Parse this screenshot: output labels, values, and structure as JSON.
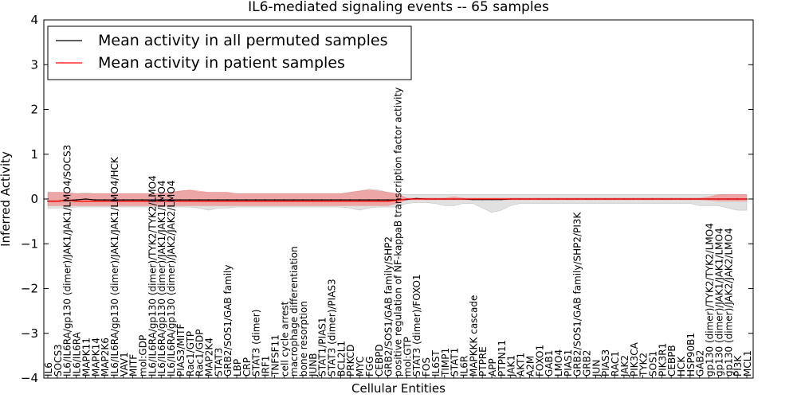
{
  "chart_data": {
    "type": "line",
    "title": "IL6-mediated signaling events -- 65 samples",
    "xlabel": "Cellular Entities",
    "ylabel": "Inferred Activity",
    "ylim": [
      -4,
      4
    ],
    "yticks": [
      -4,
      -3,
      -2,
      -1,
      0,
      1,
      2,
      3,
      4
    ],
    "grid": false,
    "legend_position": "top-left",
    "categories": [
      "IL6",
      "SOCS3",
      "IL6/IL6RA/gp130 (dimer)/JAK1/JAK1/LMO4/SOCS3",
      "IL6/IL6RA",
      "MAPK11",
      "MAPK14",
      "MAP2K6",
      "IL6/IL6RA/gp130 (dimer)/JAK1/JAK1/LMO4/HCK",
      "VAV1",
      "MITF",
      "mol:GDP",
      "IL6/IL6RA/gp130 (dimer)/TYK2/TYK2/LMO4",
      "IL6/IL6RA/gp130 (dimer)/JAK1/JAK1/LMO4",
      "IL6/IL6RA/gp130 (dimer)/JAK2/JAK2/LMO4",
      "PIAS3/MITF",
      "Rac1/GTP",
      "Rac1/GDP",
      "MAP2K4",
      "STAT3",
      "GRB2/SOS1/GAB family",
      "LBP",
      "CRP",
      "STAT3 (dimer)",
      "IRF1",
      "TNFSF11",
      "cell cycle arrest",
      "macrophage differentiation",
      "bone resorption",
      "JUNB",
      "STAT1/PIAS1",
      "STAT3 (dimer)/PIAS3",
      "BCL2L1",
      "PRKCD",
      "MYC",
      "FGG",
      "CEBPD",
      "GRB2/SOS1/GAB family/SHP2",
      "positive regulation of NF-kappaB transcription factor activity",
      "mol:GTP",
      "STAT3 (dimer)/FOXO1",
      "FOS",
      "IL6ST",
      "TIMP1",
      "STAT1",
      "IL6R",
      "MAPKKK cascade",
      "PTPRE",
      "APP",
      "PTPN11",
      "JAK1",
      "AKT1",
      "A2M",
      "FOXO1",
      "GAB1",
      "LMO4",
      "PIAS1",
      "GRB2/SOS1/GAB family/SHP2/PI3K",
      "GRB2",
      "JUN",
      "PIAS3",
      "RAC1",
      "JAK2",
      "PIK3CA",
      "TYK2",
      "SOS1",
      "PIK3R1",
      "CEBPB",
      "HCK",
      "HSP90B1",
      "GAB2",
      "gp130 (dimer)/TYK2/TYK2/LMO4",
      "gp130 (dimer)/JAK1/JAK1/LMO4",
      "gp130 (dimer)/JAK2/JAK2/LMO4",
      "PI3K",
      "MCL1"
    ],
    "series": [
      {
        "name": "Mean activity in all permuted samples",
        "color": "#000000",
        "values": [
          -0.05,
          -0.05,
          -0.03,
          -0.02,
          0.0,
          -0.02,
          -0.02,
          -0.02,
          -0.02,
          -0.02,
          -0.02,
          -0.02,
          -0.02,
          -0.02,
          -0.02,
          -0.02,
          -0.02,
          -0.02,
          -0.02,
          -0.02,
          -0.02,
          -0.02,
          -0.02,
          -0.02,
          -0.02,
          -0.02,
          -0.02,
          -0.02,
          -0.02,
          -0.02,
          -0.02,
          -0.02,
          -0.02,
          -0.02,
          -0.02,
          -0.02,
          -0.02,
          -0.02,
          -0.01,
          0.01,
          0.0,
          0.0,
          0.0,
          0.0,
          0.0,
          -0.01,
          -0.01,
          -0.01,
          -0.01,
          0.0,
          0.0,
          0.0,
          0.0,
          0.0,
          0.0,
          0.0,
          0.0,
          0.0,
          0.0,
          0.0,
          0.0,
          0.0,
          0.0,
          0.0,
          0.0,
          0.0,
          0.0,
          0.0,
          0.0,
          0.0,
          0.0,
          0.0,
          0.0,
          0.0,
          0.0
        ],
        "band_low": [
          -0.2,
          -0.2,
          -0.2,
          -0.18,
          -0.18,
          -0.18,
          -0.18,
          -0.18,
          -0.18,
          -0.18,
          -0.18,
          -0.18,
          -0.18,
          -0.18,
          -0.18,
          -0.18,
          -0.2,
          -0.25,
          -0.2,
          -0.2,
          -0.18,
          -0.18,
          -0.18,
          -0.18,
          -0.18,
          -0.18,
          -0.18,
          -0.18,
          -0.18,
          -0.18,
          -0.18,
          -0.18,
          -0.2,
          -0.25,
          -0.2,
          -0.18,
          -0.18,
          -0.18,
          -0.1,
          -0.08,
          -0.08,
          -0.1,
          -0.15,
          -0.15,
          -0.1,
          -0.1,
          -0.2,
          -0.3,
          -0.25,
          -0.15,
          -0.1,
          -0.1,
          -0.1,
          -0.1,
          -0.1,
          -0.1,
          -0.1,
          -0.1,
          -0.1,
          -0.1,
          -0.1,
          -0.1,
          -0.1,
          -0.1,
          -0.1,
          -0.1,
          -0.1,
          -0.1,
          -0.1,
          -0.15,
          -0.15,
          -0.15,
          -0.2,
          -0.25,
          -0.25
        ],
        "band_high": [
          0.15,
          0.15,
          0.15,
          0.12,
          0.14,
          0.12,
          0.12,
          0.12,
          0.12,
          0.12,
          0.12,
          0.12,
          0.12,
          0.15,
          0.18,
          0.2,
          0.15,
          0.15,
          0.15,
          0.15,
          0.12,
          0.12,
          0.12,
          0.12,
          0.12,
          0.12,
          0.12,
          0.12,
          0.12,
          0.12,
          0.12,
          0.12,
          0.15,
          0.18,
          0.22,
          0.2,
          0.15,
          0.12,
          0.1,
          0.1,
          0.1,
          0.1,
          0.1,
          0.1,
          0.1,
          0.1,
          0.1,
          0.1,
          0.1,
          0.1,
          0.1,
          0.1,
          0.1,
          0.1,
          0.1,
          0.1,
          0.1,
          0.1,
          0.1,
          0.1,
          0.1,
          0.1,
          0.1,
          0.1,
          0.1,
          0.1,
          0.1,
          0.1,
          0.1,
          0.1,
          0.1,
          0.1,
          0.1,
          0.1,
          0.1
        ]
      },
      {
        "name": "Mean activity in patient samples",
        "color": "#ff0000",
        "values": [
          -0.05,
          -0.05,
          -0.03,
          -0.05,
          -0.05,
          -0.05,
          -0.05,
          -0.05,
          -0.05,
          -0.05,
          -0.05,
          -0.05,
          -0.05,
          -0.05,
          -0.05,
          -0.05,
          -0.05,
          -0.05,
          -0.05,
          -0.05,
          -0.05,
          -0.05,
          -0.05,
          -0.05,
          -0.05,
          -0.05,
          -0.05,
          -0.05,
          -0.05,
          -0.05,
          -0.05,
          -0.05,
          -0.05,
          -0.05,
          -0.05,
          -0.05,
          -0.05,
          -0.03,
          0.0,
          0.0,
          0.0,
          0.0,
          0.0,
          0.0,
          0.0,
          0.0,
          0.0,
          0.0,
          0.0,
          0.0,
          0.0,
          0.0,
          0.0,
          0.0,
          0.0,
          0.0,
          0.0,
          0.0,
          0.0,
          0.0,
          0.0,
          0.0,
          0.0,
          0.0,
          0.0,
          0.0,
          0.0,
          0.0,
          0.0,
          0.0,
          0.0,
          0.0,
          0.0,
          0.0,
          0.0
        ],
        "band_low": [
          -0.15,
          -0.15,
          -0.15,
          -0.15,
          -0.15,
          -0.15,
          -0.15,
          -0.15,
          -0.15,
          -0.15,
          -0.15,
          -0.15,
          -0.15,
          -0.15,
          -0.15,
          -0.15,
          -0.15,
          -0.15,
          -0.15,
          -0.15,
          -0.15,
          -0.15,
          -0.15,
          -0.15,
          -0.15,
          -0.15,
          -0.15,
          -0.15,
          -0.15,
          -0.15,
          -0.15,
          -0.15,
          -0.15,
          -0.15,
          -0.15,
          -0.15,
          -0.15,
          -0.1,
          -0.02,
          -0.02,
          -0.02,
          -0.02,
          -0.02,
          -0.02,
          -0.02,
          -0.02,
          -0.02,
          -0.02,
          -0.02,
          -0.02,
          -0.02,
          -0.02,
          -0.02,
          -0.02,
          -0.02,
          -0.02,
          -0.02,
          -0.02,
          -0.02,
          -0.02,
          -0.02,
          -0.02,
          -0.02,
          -0.02,
          -0.02,
          -0.02,
          -0.02,
          -0.02,
          -0.02,
          -0.02,
          -0.03,
          -0.05,
          -0.05,
          -0.05,
          -0.05
        ],
        "band_high": [
          0.15,
          0.15,
          0.15,
          0.12,
          0.12,
          0.12,
          0.12,
          0.12,
          0.12,
          0.12,
          0.12,
          0.12,
          0.12,
          0.15,
          0.18,
          0.2,
          0.18,
          0.15,
          0.15,
          0.15,
          0.12,
          0.12,
          0.12,
          0.12,
          0.12,
          0.12,
          0.12,
          0.12,
          0.12,
          0.12,
          0.12,
          0.12,
          0.15,
          0.18,
          0.2,
          0.18,
          0.15,
          0.12,
          0.02,
          0.02,
          0.02,
          0.02,
          0.02,
          0.05,
          0.02,
          0.02,
          0.02,
          0.02,
          0.02,
          0.02,
          0.02,
          0.02,
          0.02,
          0.02,
          0.02,
          0.02,
          0.02,
          0.02,
          0.02,
          0.02,
          0.02,
          0.02,
          0.02,
          0.02,
          0.02,
          0.02,
          0.02,
          0.02,
          0.02,
          0.02,
          0.05,
          0.1,
          0.1,
          0.1,
          0.1
        ]
      }
    ]
  }
}
